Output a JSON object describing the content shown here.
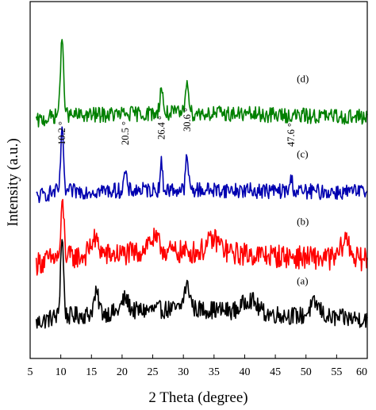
{
  "chart_data": {
    "type": "line",
    "xlabel": "2 Theta (degree)",
    "ylabel": "Intensity (a.u.)",
    "xlim": [
      5,
      60
    ],
    "x_ticks": [
      5,
      10,
      15,
      20,
      25,
      30,
      35,
      40,
      45,
      50,
      55,
      60
    ],
    "y_ticks_shown": false,
    "grid": false,
    "series": [
      {
        "label": "(a)",
        "color": "#000000",
        "baseline": 0.0,
        "peaks": [
          [
            10.2,
            0.62,
            0.35
          ],
          [
            15.8,
            0.15,
            0.6
          ],
          [
            20.5,
            0.1,
            0.8
          ],
          [
            30.6,
            0.18,
            0.7
          ],
          [
            40.8,
            0.1,
            1.5
          ],
          [
            51.5,
            0.1,
            1.2
          ]
        ],
        "hump": 0.08,
        "noise": 0.07
      },
      {
        "label": "(b)",
        "color": "#ff0000",
        "baseline": 0.46,
        "peaks": [
          [
            10.3,
            0.41,
            0.35
          ],
          [
            15.5,
            0.12,
            1.0
          ],
          [
            25.0,
            0.1,
            1.5
          ],
          [
            35.0,
            0.1,
            1.5
          ],
          [
            56.5,
            0.15,
            1.0
          ]
        ],
        "hump": 0.06,
        "noise": 0.09
      },
      {
        "label": "(c)",
        "color": "#0000b0",
        "baseline": 0.98,
        "peaks": [
          [
            10.2,
            0.52,
            0.28
          ],
          [
            20.5,
            0.14,
            0.3
          ],
          [
            26.4,
            0.2,
            0.28
          ],
          [
            30.6,
            0.26,
            0.3
          ],
          [
            47.6,
            0.09,
            0.35
          ]
        ],
        "hump": 0.02,
        "noise": 0.06
      },
      {
        "label": "(d)",
        "color": "#008000",
        "baseline": 1.56,
        "peaks": [
          [
            10.2,
            0.55,
            0.4
          ],
          [
            26.4,
            0.2,
            0.35
          ],
          [
            30.6,
            0.28,
            0.35
          ]
        ],
        "hump": 0.03,
        "noise": 0.06
      }
    ],
    "annotations": [
      {
        "text": "10.2 °",
        "x": 10.2
      },
      {
        "text": "20.5 °",
        "x": 20.5
      },
      {
        "text": "26.4 °",
        "x": 26.4
      },
      {
        "text": "30.6 °",
        "x": 30.6
      },
      {
        "text": "47.6 °",
        "x": 47.6
      }
    ]
  }
}
